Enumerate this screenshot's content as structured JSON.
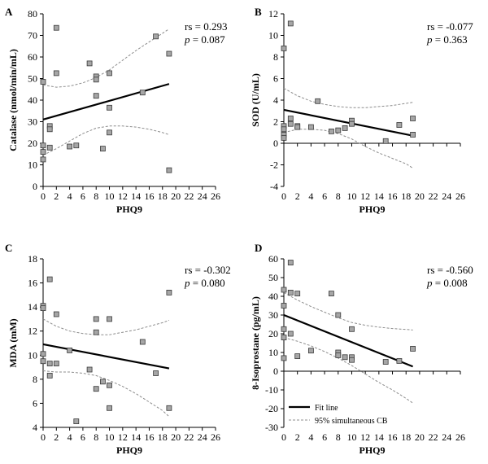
{
  "chart_data": [
    {
      "type": "scatter",
      "panel_label": "A",
      "xlabel": "PHQ9",
      "ylabel": "Catalase (nmol/min/mL)",
      "xlim": [
        0,
        26
      ],
      "ylim": [
        0,
        80
      ],
      "xticks": [
        0,
        2,
        4,
        6,
        8,
        10,
        12,
        14,
        16,
        18,
        20,
        22,
        24,
        26
      ],
      "yticks": [
        0,
        10,
        20,
        30,
        40,
        50,
        60,
        70,
        80
      ],
      "points": [
        [
          0,
          48.5
        ],
        [
          0,
          19
        ],
        [
          0,
          16
        ],
        [
          0,
          12.5
        ],
        [
          1,
          28
        ],
        [
          1,
          26.5
        ],
        [
          1,
          18
        ],
        [
          2,
          73.5
        ],
        [
          2,
          52.5
        ],
        [
          4,
          18.5
        ],
        [
          5,
          19
        ],
        [
          7,
          57
        ],
        [
          8,
          51
        ],
        [
          8,
          49.5
        ],
        [
          8,
          42
        ],
        [
          9,
          17.5
        ],
        [
          10,
          52.5
        ],
        [
          10,
          36.5
        ],
        [
          10,
          25
        ],
        [
          15,
          43.5
        ],
        [
          17,
          69.5
        ],
        [
          19,
          61.5
        ],
        [
          19,
          7.5
        ]
      ],
      "fit_line": [
        [
          0,
          31
        ],
        [
          19,
          47.5
        ]
      ],
      "ci_upper": [
        [
          0,
          47
        ],
        [
          2,
          46
        ],
        [
          4,
          46.5
        ],
        [
          6,
          48
        ],
        [
          8,
          50.5
        ],
        [
          10,
          54
        ],
        [
          12,
          58.5
        ],
        [
          14,
          63
        ],
        [
          16,
          67
        ],
        [
          18,
          71
        ],
        [
          19,
          73
        ]
      ],
      "ci_lower": [
        [
          0,
          14.5
        ],
        [
          2,
          17.5
        ],
        [
          4,
          21
        ],
        [
          6,
          24.5
        ],
        [
          8,
          27
        ],
        [
          10,
          28
        ],
        [
          12,
          28
        ],
        [
          14,
          27.5
        ],
        [
          16,
          26.5
        ],
        [
          18,
          25
        ],
        [
          19,
          24
        ]
      ],
      "annotation": {
        "rs": "rs = 0.293",
        "p_label": "p",
        "p_value": " = 0.087"
      }
    },
    {
      "type": "scatter",
      "panel_label": "B",
      "xlabel": "PHQ9",
      "ylabel": "SOD (U/mL)",
      "xlim": [
        0,
        26
      ],
      "ylim": [
        -4,
        12
      ],
      "xticks": [
        0,
        2,
        4,
        6,
        8,
        10,
        12,
        14,
        16,
        18,
        20,
        22,
        24,
        26
      ],
      "yticks": [
        -4,
        -2,
        0,
        2,
        4,
        6,
        8,
        10,
        12
      ],
      "points": [
        [
          0,
          8.8
        ],
        [
          0,
          1.6
        ],
        [
          0,
          1.3
        ],
        [
          0,
          0.8
        ],
        [
          0,
          0.5
        ],
        [
          1,
          11.1
        ],
        [
          1,
          2.3
        ],
        [
          1,
          1.8
        ],
        [
          2,
          1.6
        ],
        [
          2,
          1.5
        ],
        [
          4,
          1.5
        ],
        [
          5,
          3.9
        ],
        [
          7,
          1.1
        ],
        [
          8,
          1.2
        ],
        [
          9,
          1.4
        ],
        [
          10,
          2.1
        ],
        [
          10,
          1.8
        ],
        [
          15,
          0.2
        ],
        [
          17,
          1.7
        ],
        [
          19,
          2.3
        ],
        [
          19,
          0.8
        ]
      ],
      "fit_line": [
        [
          0,
          3.1
        ],
        [
          19,
          0.7
        ]
      ],
      "ci_upper": [
        [
          0,
          5.1
        ],
        [
          2,
          4.4
        ],
        [
          4,
          3.9
        ],
        [
          6,
          3.6
        ],
        [
          8,
          3.4
        ],
        [
          10,
          3.3
        ],
        [
          12,
          3.3
        ],
        [
          14,
          3.4
        ],
        [
          16,
          3.5
        ],
        [
          18,
          3.7
        ],
        [
          19,
          3.8
        ]
      ],
      "ci_lower": [
        [
          0,
          1.0
        ],
        [
          2,
          1.3
        ],
        [
          4,
          1.3
        ],
        [
          6,
          1.2
        ],
        [
          8,
          0.9
        ],
        [
          10,
          0.4
        ],
        [
          12,
          -0.3
        ],
        [
          14,
          -0.9
        ],
        [
          16,
          -1.4
        ],
        [
          18,
          -1.9
        ],
        [
          19,
          -2.3
        ]
      ],
      "annotation": {
        "rs": "rs = -0.077",
        "p_label": "p",
        "p_value": " = 0.363"
      }
    },
    {
      "type": "scatter",
      "panel_label": "C",
      "xlabel": "PHQ9",
      "ylabel": "MDA (mM)",
      "xlim": [
        0,
        26
      ],
      "ylim": [
        4,
        18
      ],
      "xticks": [
        0,
        2,
        4,
        6,
        8,
        10,
        12,
        14,
        16,
        18,
        20,
        22,
        24,
        26
      ],
      "yticks": [
        4,
        6,
        8,
        10,
        12,
        14,
        16,
        18
      ],
      "points": [
        [
          0,
          14.1
        ],
        [
          0,
          13.9
        ],
        [
          0,
          10.1
        ],
        [
          0,
          9.5
        ],
        [
          1,
          16.3
        ],
        [
          1,
          9.3
        ],
        [
          1,
          8.3
        ],
        [
          2,
          13.4
        ],
        [
          2,
          9.3
        ],
        [
          4,
          10.4
        ],
        [
          5,
          4.5
        ],
        [
          7,
          8.8
        ],
        [
          8,
          13.0
        ],
        [
          8,
          11.9
        ],
        [
          8,
          7.2
        ],
        [
          9,
          7.8
        ],
        [
          10,
          13.0
        ],
        [
          10,
          7.5
        ],
        [
          10,
          5.6
        ],
        [
          15,
          11.1
        ],
        [
          17,
          8.5
        ],
        [
          19,
          15.2
        ],
        [
          19,
          5.6
        ]
      ],
      "fit_line": [
        [
          0,
          10.9
        ],
        [
          19,
          8.9
        ]
      ],
      "ci_upper": [
        [
          0,
          13.0
        ],
        [
          2,
          12.4
        ],
        [
          4,
          12.0
        ],
        [
          6,
          11.8
        ],
        [
          8,
          11.7
        ],
        [
          10,
          11.7
        ],
        [
          12,
          11.9
        ],
        [
          14,
          12.1
        ],
        [
          16,
          12.4
        ],
        [
          18,
          12.7
        ],
        [
          19,
          12.9
        ]
      ],
      "ci_lower": [
        [
          0,
          8.7
        ],
        [
          2,
          8.6
        ],
        [
          4,
          8.6
        ],
        [
          6,
          8.5
        ],
        [
          8,
          8.3
        ],
        [
          10,
          7.9
        ],
        [
          12,
          7.4
        ],
        [
          14,
          6.8
        ],
        [
          16,
          6.1
        ],
        [
          18,
          5.4
        ],
        [
          19,
          4.9
        ]
      ],
      "annotation": {
        "rs": "rs = -0.302",
        "p_label": "p",
        "p_value": " = 0.080"
      }
    },
    {
      "type": "scatter",
      "panel_label": "D",
      "xlabel": "PHQ9",
      "ylabel": "8-Isoprostane (pg/mL)",
      "xlim": [
        0,
        26
      ],
      "ylim": [
        -30,
        60
      ],
      "xticks": [
        0,
        2,
        4,
        6,
        8,
        10,
        12,
        14,
        16,
        18,
        20,
        22,
        24,
        26
      ],
      "yticks": [
        -30,
        -20,
        -10,
        0,
        10,
        20,
        30,
        40,
        50,
        60
      ],
      "points": [
        [
          0,
          43.5
        ],
        [
          0,
          35
        ],
        [
          0,
          22.5
        ],
        [
          0,
          18
        ],
        [
          0,
          7
        ],
        [
          1,
          58
        ],
        [
          1,
          42
        ],
        [
          1,
          20
        ],
        [
          2,
          41.5
        ],
        [
          2,
          8
        ],
        [
          4,
          11
        ],
        [
          7,
          41.5
        ],
        [
          8,
          30
        ],
        [
          8,
          10
        ],
        [
          8,
          8.5
        ],
        [
          9,
          7.5
        ],
        [
          10,
          22.5
        ],
        [
          10,
          7.5
        ],
        [
          10,
          6
        ],
        [
          15,
          5
        ],
        [
          17,
          5.5
        ],
        [
          19,
          12
        ]
      ],
      "fit_line": [
        [
          0,
          30
        ],
        [
          19,
          2.5
        ]
      ],
      "ci_upper": [
        [
          0,
          42
        ],
        [
          2,
          38
        ],
        [
          4,
          34.5
        ],
        [
          6,
          31.5
        ],
        [
          8,
          28.5
        ],
        [
          10,
          26
        ],
        [
          12,
          24.5
        ],
        [
          14,
          23.5
        ],
        [
          16,
          22.8
        ],
        [
          18,
          22.3
        ],
        [
          19,
          22
        ]
      ],
      "ci_lower": [
        [
          0,
          18
        ],
        [
          2,
          16
        ],
        [
          4,
          13.5
        ],
        [
          6,
          10.5
        ],
        [
          8,
          7
        ],
        [
          10,
          3
        ],
        [
          12,
          -1.5
        ],
        [
          14,
          -6
        ],
        [
          16,
          -10
        ],
        [
          18,
          -14.5
        ],
        [
          19,
          -17
        ]
      ],
      "annotation": {
        "rs": "rs = -0.560",
        "p_label": "p",
        "p_value": " = 0.008"
      },
      "legend": [
        {
          "label": "Fit line",
          "style": "solid"
        },
        {
          "label": "95% simultaneous CB",
          "style": "dashed"
        }
      ]
    }
  ],
  "colors": {
    "marker_fill": "#a6a6a6",
    "marker_stroke": "#3a3a3a",
    "fit_line": "#000000",
    "ci_band": "#8c8c8c",
    "axis": "#000000"
  }
}
